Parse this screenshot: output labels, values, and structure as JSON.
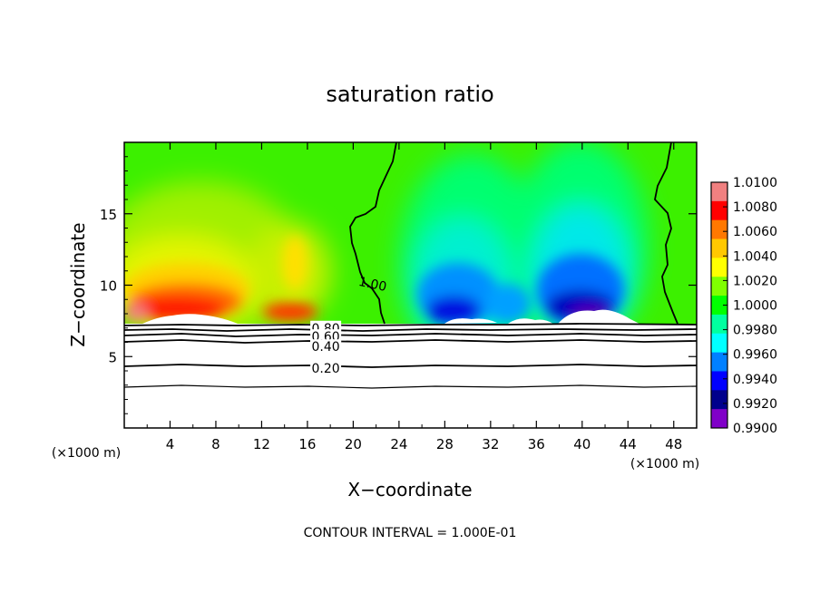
{
  "chart_data": {
    "type": "heatmap",
    "title": "saturation ratio",
    "xlabel": "X−coordinate",
    "ylabel": "Z−coordinate",
    "x_unit_left": "(×1000 m)",
    "x_unit_right": "(×1000 m)",
    "xlim": [
      0,
      50
    ],
    "ylim": [
      0,
      20
    ],
    "x_ticks": [
      4,
      8,
      12,
      16,
      20,
      24,
      28,
      32,
      36,
      40,
      44,
      48
    ],
    "x_tick_labels": [
      "4",
      "8",
      "12",
      "16",
      "20",
      "24",
      "28",
      "32",
      "36",
      "40",
      "44",
      "48"
    ],
    "y_ticks": [
      5,
      10,
      15
    ],
    "y_tick_labels": [
      "5",
      "10",
      "15"
    ],
    "colorbar": {
      "min": 0.99,
      "max": 1.01,
      "labels": [
        "1.0100",
        "1.0080",
        "1.0060",
        "1.0040",
        "1.0020",
        "1.0000",
        "0.9980",
        "0.9960",
        "0.9940",
        "0.9920",
        "0.9900"
      ],
      "values": [
        1.01,
        1.008,
        1.006,
        1.004,
        1.002,
        1.0,
        0.998,
        0.996,
        0.994,
        0.992,
        0.99
      ],
      "colors": [
        "#f08080",
        "#ff0000",
        "#ff7800",
        "#ffc800",
        "#ffff00",
        "#80ff00",
        "#00ff00",
        "#00ffa0",
        "#00ffff",
        "#0080ff",
        "#0000ff",
        "#00008c",
        "#8000c8"
      ]
    },
    "contour_labels": [
      {
        "text": "1.00",
        "x": 21.7,
        "z": 10.1
      },
      {
        "text": "0.80",
        "x": 17.6,
        "z": 7.0
      },
      {
        "text": "0.60",
        "x": 17.6,
        "z": 6.4
      },
      {
        "text": "0.40",
        "x": 17.6,
        "z": 5.7
      },
      {
        "text": "0.20",
        "x": 17.6,
        "z": 4.2
      }
    ],
    "annotation": "CONTOUR INTERVAL = 1.000E-01"
  }
}
